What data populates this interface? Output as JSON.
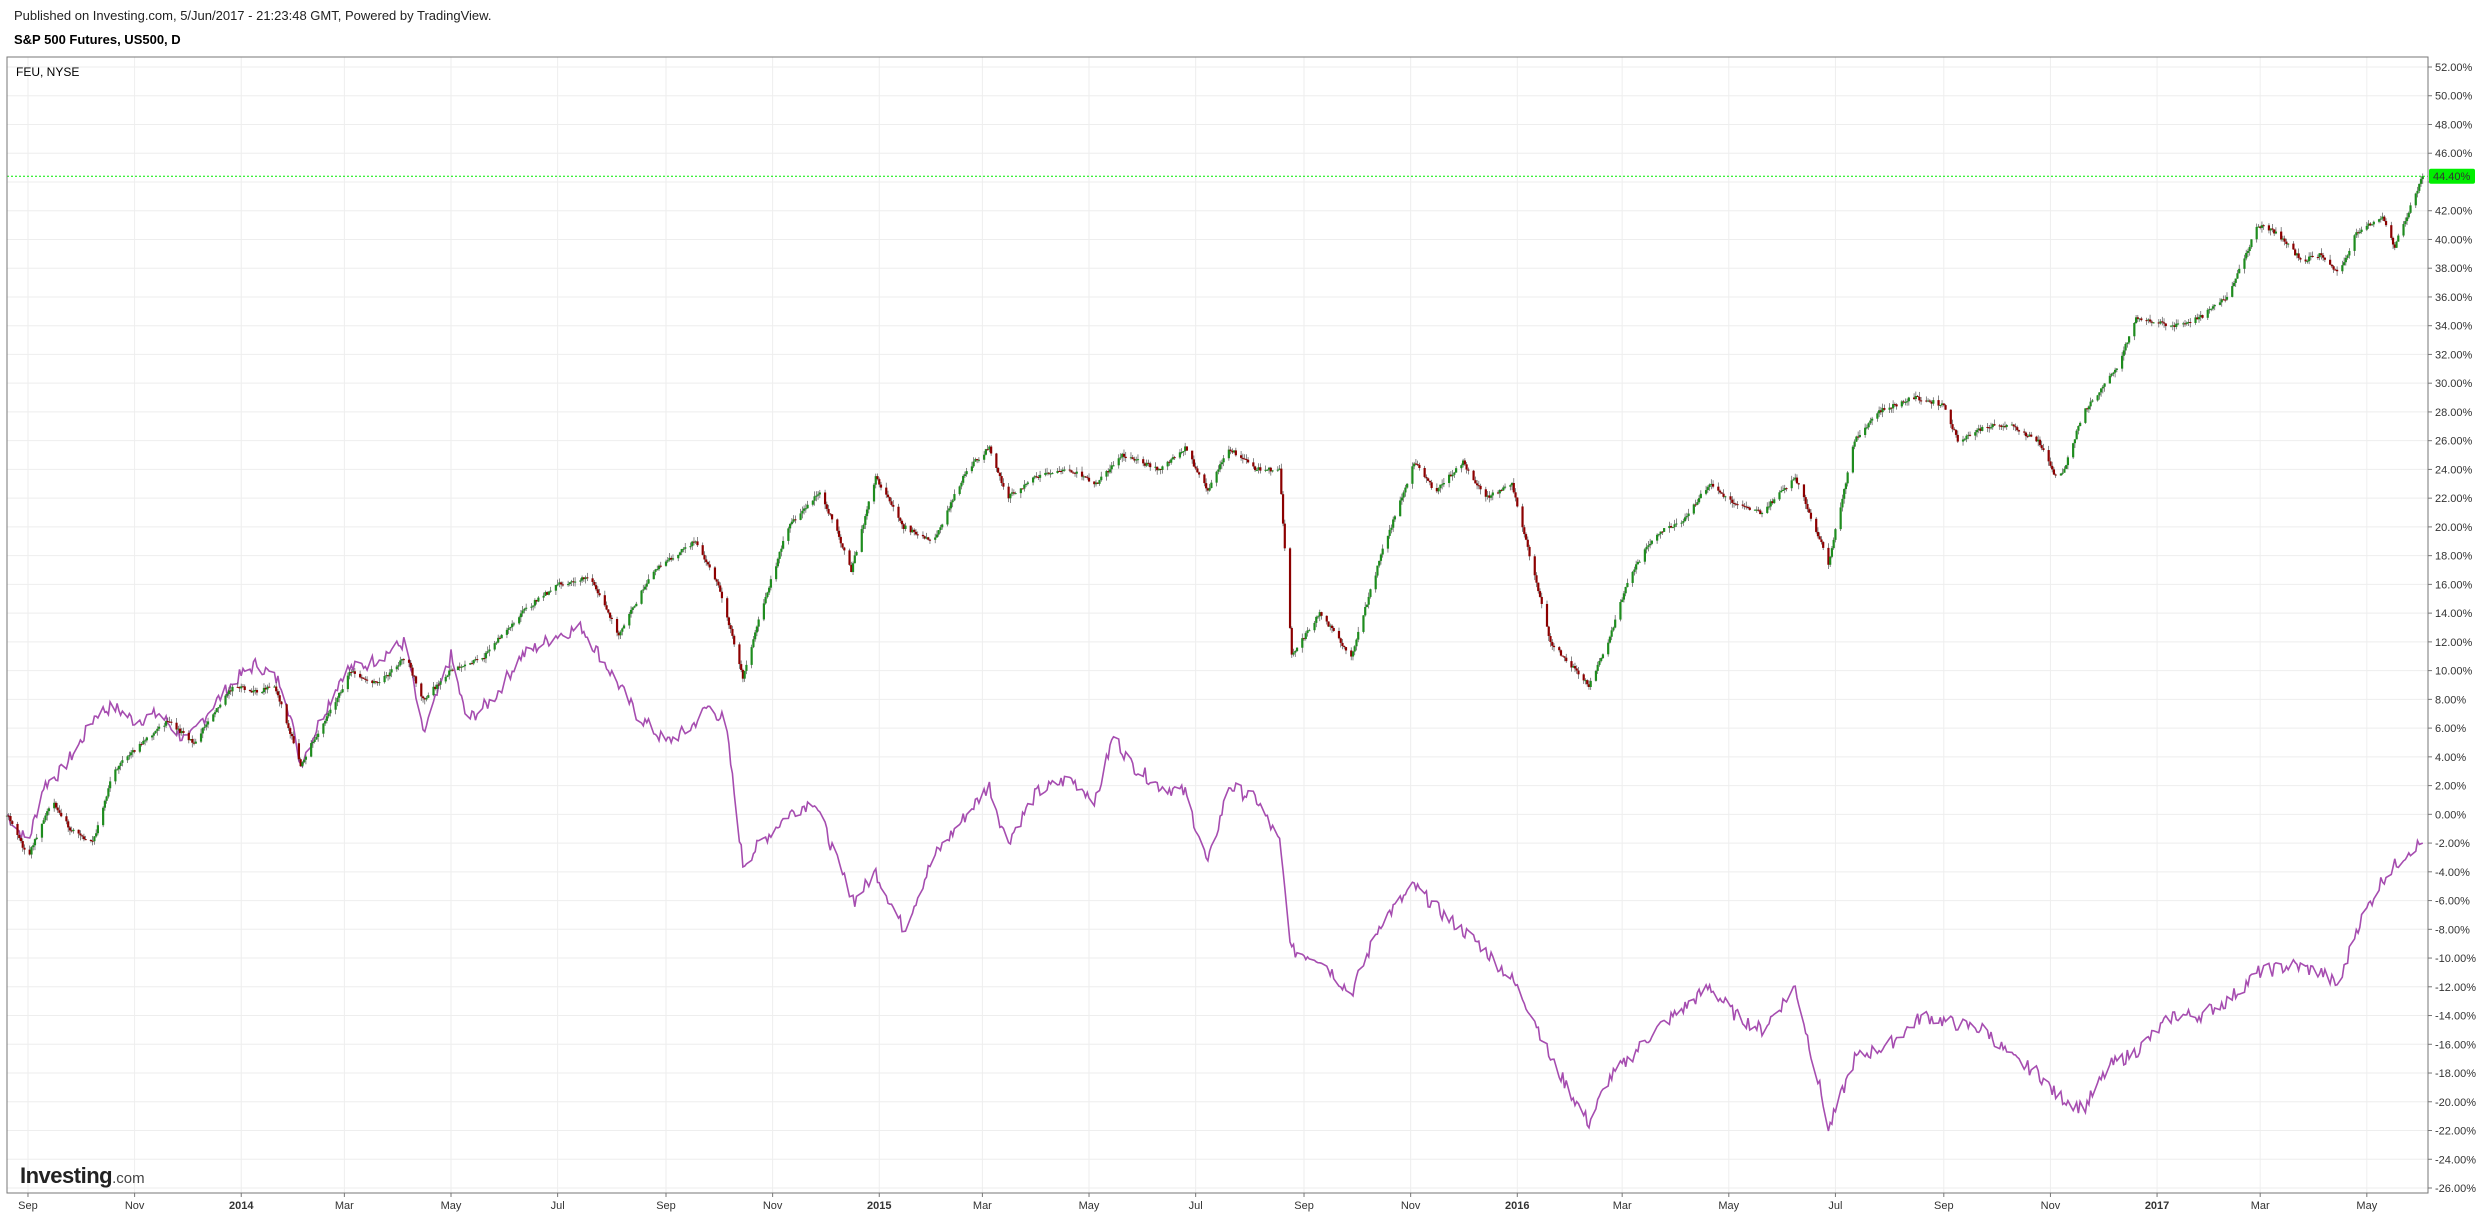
{
  "header": {
    "published": "Published on Investing.com, 5/Jun/2017 - 21:23:48 GMT, Powered by TradingView.",
    "symbol": "S&P 500 Futures, US500, D"
  },
  "logo": {
    "brand": "Investing",
    "suffix": ".com"
  },
  "chart_data": {
    "type": "line",
    "compare_label": "FEU, NYSE",
    "y_unit": "%",
    "ylim": [
      -26,
      52
    ],
    "y_ticks": [
      52,
      50,
      48,
      46,
      44,
      42,
      40,
      38,
      36,
      34,
      32,
      30,
      28,
      26,
      24,
      22,
      20,
      18,
      16,
      14,
      12,
      10,
      8,
      6,
      4,
      2,
      0,
      -2,
      -4,
      -6,
      -8,
      -10,
      -12,
      -14,
      -16,
      -18,
      -20,
      -22,
      -24,
      -26
    ],
    "y_tick_labels": [
      "52.00%",
      "50.00%",
      "48.00%",
      "46.00%",
      "",
      "42.00%",
      "40.00%",
      "38.00%",
      "36.00%",
      "34.00%",
      "32.00%",
      "30.00%",
      "28.00%",
      "26.00%",
      "24.00%",
      "22.00%",
      "20.00%",
      "18.00%",
      "16.00%",
      "14.00%",
      "12.00%",
      "10.00%",
      "8.00%",
      "6.00%",
      "4.00%",
      "2.00%",
      "0.00%",
      "-2.00%",
      "-4.00%",
      "-6.00%",
      "-8.00%",
      "-10.00%",
      "-12.00%",
      "-14.00%",
      "-16.00%",
      "-18.00%",
      "-20.00%",
      "-22.00%",
      "-24.00%",
      "-26.00%"
    ],
    "last_value": 44.4,
    "last_value_label": "44.40%",
    "last_value_color": "#00ee00",
    "xlim": [
      "2013-08-20",
      "2017-06-05"
    ],
    "x_ticks": [
      {
        "date": "2013-09-01",
        "label": "Sep",
        "major": false
      },
      {
        "date": "2013-11-01",
        "label": "Nov",
        "major": false
      },
      {
        "date": "2014-01-01",
        "label": "2014",
        "major": true
      },
      {
        "date": "2014-03-01",
        "label": "Mar",
        "major": false
      },
      {
        "date": "2014-05-01",
        "label": "May",
        "major": false
      },
      {
        "date": "2014-07-01",
        "label": "Jul",
        "major": false
      },
      {
        "date": "2014-09-01",
        "label": "Sep",
        "major": false
      },
      {
        "date": "2014-11-01",
        "label": "Nov",
        "major": false
      },
      {
        "date": "2015-01-01",
        "label": "2015",
        "major": true
      },
      {
        "date": "2015-03-01",
        "label": "Mar",
        "major": false
      },
      {
        "date": "2015-05-01",
        "label": "May",
        "major": false
      },
      {
        "date": "2015-07-01",
        "label": "Jul",
        "major": false
      },
      {
        "date": "2015-09-01",
        "label": "Sep",
        "major": false
      },
      {
        "date": "2015-11-01",
        "label": "Nov",
        "major": false
      },
      {
        "date": "2016-01-01",
        "label": "2016",
        "major": true
      },
      {
        "date": "2016-03-01",
        "label": "Mar",
        "major": false
      },
      {
        "date": "2016-05-01",
        "label": "May",
        "major": false
      },
      {
        "date": "2016-07-01",
        "label": "Jul",
        "major": false
      },
      {
        "date": "2016-09-01",
        "label": "Sep",
        "major": false
      },
      {
        "date": "2016-11-01",
        "label": "Nov",
        "major": false
      },
      {
        "date": "2017-01-01",
        "label": "2017",
        "major": true
      },
      {
        "date": "2017-03-01",
        "label": "Mar",
        "major": false
      },
      {
        "date": "2017-05-01",
        "label": "May",
        "major": false
      }
    ],
    "grid": true,
    "colors": {
      "up": "#1e8c1e",
      "down": "#8c0000",
      "wick": "#555555",
      "compare": "#a64db0",
      "grid": "#eeeeee"
    },
    "series": [
      {
        "kind": "candlestick",
        "points": [
          [
            "2013-08-20",
            0
          ],
          [
            "2013-09-01",
            -3
          ],
          [
            "2013-09-15",
            1
          ],
          [
            "2013-09-25",
            -1
          ],
          [
            "2013-10-08",
            -2
          ],
          [
            "2013-10-20",
            3
          ],
          [
            "2013-11-01",
            4.5
          ],
          [
            "2013-11-20",
            6.5
          ],
          [
            "2013-12-05",
            5
          ],
          [
            "2013-12-28",
            9
          ],
          [
            "2014-01-10",
            8.5
          ],
          [
            "2014-01-20",
            9
          ],
          [
            "2014-02-04",
            3.5
          ],
          [
            "2014-02-20",
            7
          ],
          [
            "2014-03-05",
            10
          ],
          [
            "2014-03-20",
            9
          ],
          [
            "2014-04-05",
            11
          ],
          [
            "2014-04-15",
            8
          ],
          [
            "2014-05-01",
            10
          ],
          [
            "2014-05-20",
            11
          ],
          [
            "2014-06-10",
            14
          ],
          [
            "2014-07-01",
            16
          ],
          [
            "2014-07-20",
            16.5
          ],
          [
            "2014-08-05",
            12.5
          ],
          [
            "2014-08-25",
            17
          ],
          [
            "2014-09-18",
            19
          ],
          [
            "2014-10-01",
            16
          ],
          [
            "2014-10-15",
            9.5
          ],
          [
            "2014-10-25",
            14
          ],
          [
            "2014-11-10",
            20
          ],
          [
            "2014-11-28",
            22.5
          ],
          [
            "2014-12-10",
            19
          ],
          [
            "2014-12-16",
            17
          ],
          [
            "2014-12-30",
            23.5
          ],
          [
            "2015-01-15",
            20
          ],
          [
            "2015-02-01",
            19
          ],
          [
            "2015-02-20",
            24
          ],
          [
            "2015-03-05",
            25.5
          ],
          [
            "2015-03-15",
            22
          ],
          [
            "2015-04-01",
            23.5
          ],
          [
            "2015-04-20",
            24
          ],
          [
            "2015-05-05",
            23
          ],
          [
            "2015-05-20",
            25
          ],
          [
            "2015-06-10",
            24
          ],
          [
            "2015-06-25",
            25.5
          ],
          [
            "2015-07-08",
            22.5
          ],
          [
            "2015-07-20",
            25.5
          ],
          [
            "2015-08-05",
            24
          ],
          [
            "2015-08-18",
            24
          ],
          [
            "2015-08-25",
            11
          ],
          [
            "2015-09-10",
            14
          ],
          [
            "2015-09-28",
            11
          ],
          [
            "2015-10-15",
            18
          ],
          [
            "2015-11-03",
            24.5
          ],
          [
            "2015-11-15",
            22.5
          ],
          [
            "2015-12-01",
            24.5
          ],
          [
            "2015-12-14",
            22
          ],
          [
            "2015-12-29",
            23
          ],
          [
            "2016-01-10",
            17
          ],
          [
            "2016-01-20",
            12
          ],
          [
            "2016-02-11",
            9
          ],
          [
            "2016-02-22",
            12
          ],
          [
            "2016-03-05",
            16.5
          ],
          [
            "2016-03-20",
            19.5
          ],
          [
            "2016-04-05",
            20.5
          ],
          [
            "2016-04-20",
            23
          ],
          [
            "2016-05-05",
            21.5
          ],
          [
            "2016-05-20",
            21
          ],
          [
            "2016-06-08",
            23.5
          ],
          [
            "2016-06-24",
            18.5
          ],
          [
            "2016-06-27",
            17.5
          ],
          [
            "2016-07-12",
            26
          ],
          [
            "2016-07-25",
            28
          ],
          [
            "2016-08-15",
            29
          ],
          [
            "2016-09-01",
            28.5
          ],
          [
            "2016-09-09",
            26
          ],
          [
            "2016-09-25",
            27
          ],
          [
            "2016-10-10",
            27
          ],
          [
            "2016-10-25",
            26
          ],
          [
            "2016-11-04",
            23.5
          ],
          [
            "2016-11-09",
            24
          ],
          [
            "2016-11-20",
            28
          ],
          [
            "2016-12-09",
            31
          ],
          [
            "2016-12-20",
            34.5
          ],
          [
            "2017-01-10",
            34
          ],
          [
            "2017-01-25",
            34.5
          ],
          [
            "2017-02-10",
            36
          ],
          [
            "2017-02-28",
            41
          ],
          [
            "2017-03-10",
            40.5
          ],
          [
            "2017-03-25",
            38.5
          ],
          [
            "2017-04-05",
            39
          ],
          [
            "2017-04-15",
            37.5
          ],
          [
            "2017-04-25",
            40.5
          ],
          [
            "2017-05-10",
            41.5
          ],
          [
            "2017-05-17",
            39.5
          ],
          [
            "2017-05-25",
            42
          ],
          [
            "2017-06-02",
            44.4
          ]
        ]
      },
      {
        "kind": "line",
        "points": [
          [
            "2013-08-20",
            0
          ],
          [
            "2013-09-01",
            -2
          ],
          [
            "2013-09-10",
            2
          ],
          [
            "2013-09-20",
            3
          ],
          [
            "2013-10-01",
            5
          ],
          [
            "2013-10-10",
            7
          ],
          [
            "2013-10-20",
            7.5
          ],
          [
            "2013-11-01",
            6.5
          ],
          [
            "2013-11-15",
            7
          ],
          [
            "2013-12-01",
            5
          ],
          [
            "2013-12-15",
            7.5
          ],
          [
            "2013-12-30",
            9.5
          ],
          [
            "2014-01-10",
            10.5
          ],
          [
            "2014-01-25",
            9
          ],
          [
            "2014-02-04",
            3.5
          ],
          [
            "2014-02-15",
            6.5
          ],
          [
            "2014-03-01",
            10
          ],
          [
            "2014-03-15",
            10.5
          ],
          [
            "2014-04-05",
            12
          ],
          [
            "2014-04-15",
            5.5
          ],
          [
            "2014-05-01",
            11
          ],
          [
            "2014-05-10",
            6.5
          ],
          [
            "2014-05-25",
            8
          ],
          [
            "2014-06-10",
            11
          ],
          [
            "2014-07-01",
            12.5
          ],
          [
            "2014-07-15",
            13
          ],
          [
            "2014-08-05",
            9
          ],
          [
            "2014-08-15",
            7
          ],
          [
            "2014-09-01",
            5
          ],
          [
            "2014-09-15",
            6
          ],
          [
            "2014-09-25",
            7.5
          ],
          [
            "2014-10-05",
            6.5
          ],
          [
            "2014-10-15",
            -3.5
          ],
          [
            "2014-10-25",
            -2
          ],
          [
            "2014-11-10",
            0
          ],
          [
            "2014-11-25",
            1
          ],
          [
            "2014-12-10",
            -4
          ],
          [
            "2014-12-18",
            -6
          ],
          [
            "2014-12-30",
            -4
          ],
          [
            "2015-01-15",
            -8
          ],
          [
            "2015-02-01",
            -3
          ],
          [
            "2015-02-20",
            0
          ],
          [
            "2015-03-05",
            2
          ],
          [
            "2015-03-15",
            -2
          ],
          [
            "2015-04-01",
            1.5
          ],
          [
            "2015-04-20",
            2.5
          ],
          [
            "2015-05-05",
            1
          ],
          [
            "2015-05-15",
            5.5
          ],
          [
            "2015-05-25",
            3.5
          ],
          [
            "2015-06-10",
            2
          ],
          [
            "2015-06-25",
            1.5
          ],
          [
            "2015-07-08",
            -3.5
          ],
          [
            "2015-07-20",
            2
          ],
          [
            "2015-08-05",
            1
          ],
          [
            "2015-08-18",
            -2
          ],
          [
            "2015-08-25",
            -9.5
          ],
          [
            "2015-09-10",
            -10
          ],
          [
            "2015-09-28",
            -12.5
          ],
          [
            "2015-10-15",
            -7.5
          ],
          [
            "2015-11-03",
            -5
          ],
          [
            "2015-11-20",
            -7
          ],
          [
            "2015-12-10",
            -9
          ],
          [
            "2015-12-29",
            -11.5
          ],
          [
            "2016-01-10",
            -14
          ],
          [
            "2016-01-20",
            -17
          ],
          [
            "2016-02-11",
            -21.5
          ],
          [
            "2016-02-22",
            -18.5
          ],
          [
            "2016-03-05",
            -17
          ],
          [
            "2016-03-20",
            -15
          ],
          [
            "2016-04-05",
            -13.5
          ],
          [
            "2016-04-20",
            -12
          ],
          [
            "2016-05-05",
            -14
          ],
          [
            "2016-05-20",
            -15
          ],
          [
            "2016-06-08",
            -12
          ],
          [
            "2016-06-24",
            -20
          ],
          [
            "2016-06-27",
            -22
          ],
          [
            "2016-07-12",
            -17
          ],
          [
            "2016-08-01",
            -16
          ],
          [
            "2016-08-20",
            -14
          ],
          [
            "2016-09-05",
            -14.5
          ],
          [
            "2016-09-25",
            -15
          ],
          [
            "2016-10-10",
            -17
          ],
          [
            "2016-10-25",
            -18
          ],
          [
            "2016-11-04",
            -19.5
          ],
          [
            "2016-11-20",
            -20.5
          ],
          [
            "2016-12-05",
            -17.5
          ],
          [
            "2016-12-20",
            -16.5
          ],
          [
            "2017-01-10",
            -14
          ],
          [
            "2017-01-25",
            -14
          ],
          [
            "2017-02-10",
            -13
          ],
          [
            "2017-02-28",
            -11
          ],
          [
            "2017-03-20",
            -10.5
          ],
          [
            "2017-04-05",
            -11
          ],
          [
            "2017-04-15",
            -12
          ],
          [
            "2017-04-25",
            -8
          ],
          [
            "2017-05-10",
            -4.5
          ],
          [
            "2017-05-25",
            -2.5
          ],
          [
            "2017-06-02",
            -2
          ]
        ]
      }
    ]
  }
}
